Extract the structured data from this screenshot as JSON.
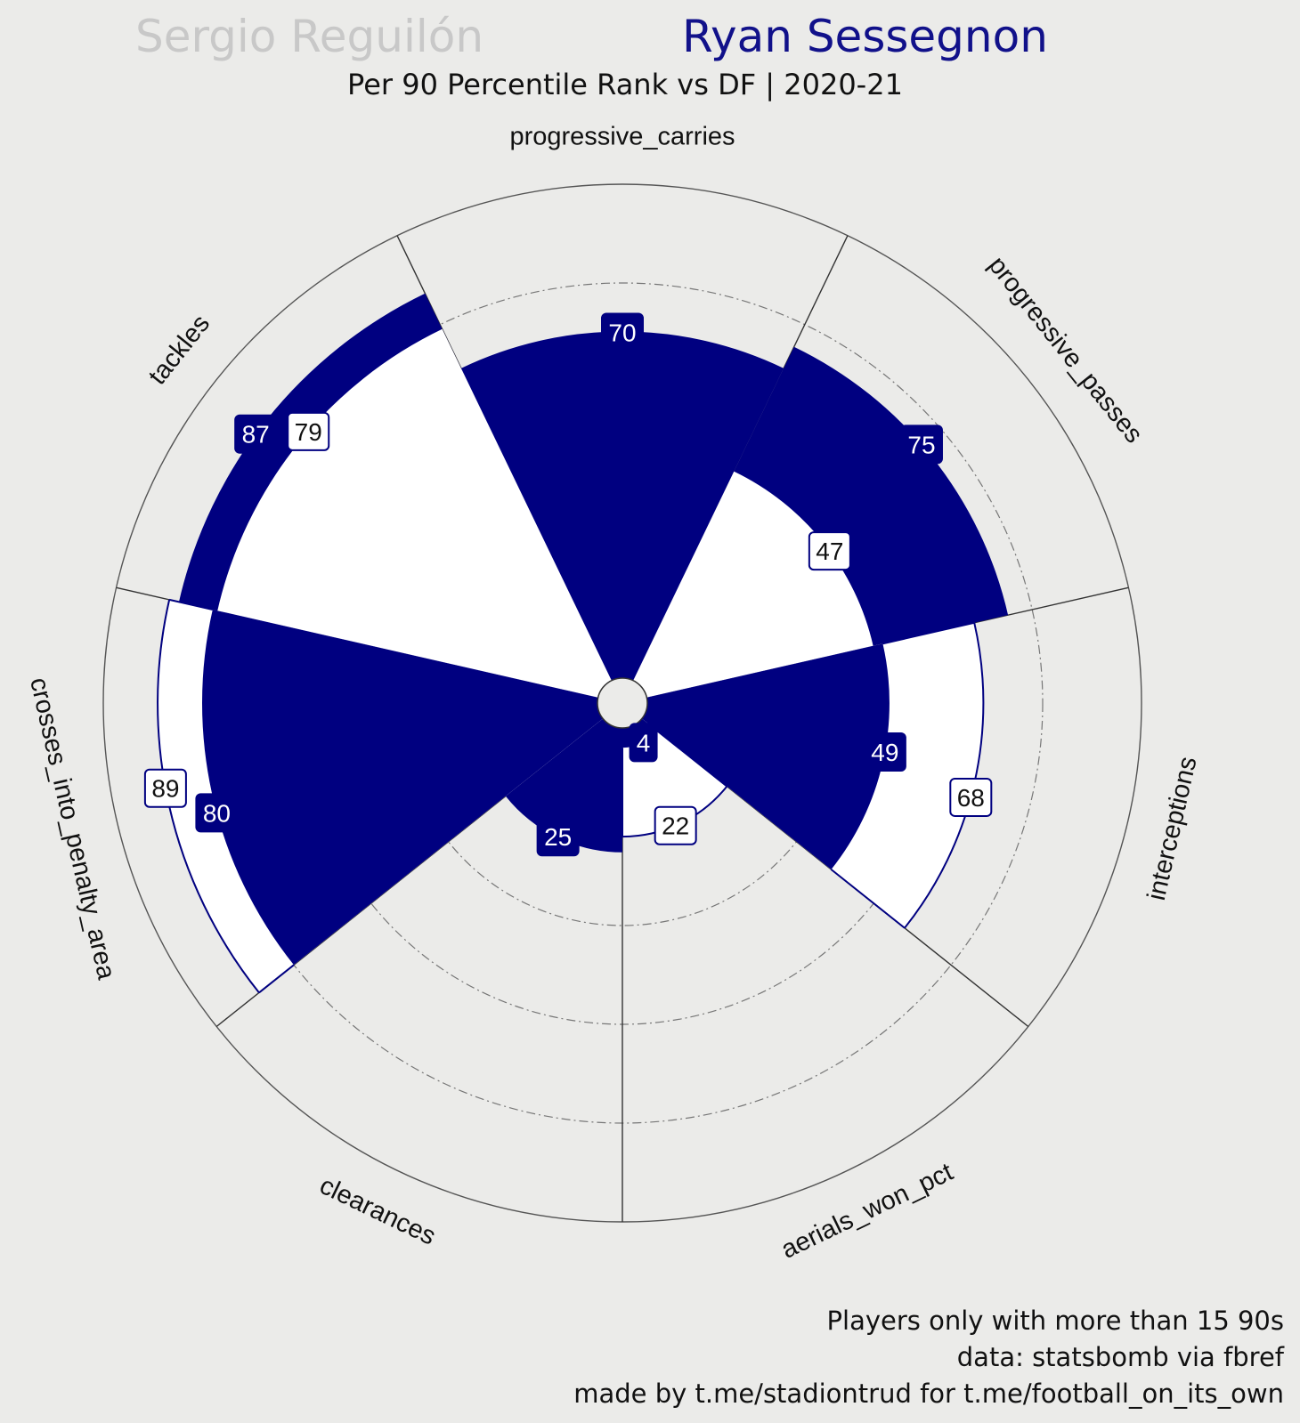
{
  "header": {
    "player_a": "Sergio Reguilón",
    "player_b": "Ryan Sessegnon",
    "subtitle": "Per 90 Percentile Rank vs DF | 2020-21"
  },
  "footer": {
    "line1": "Players only with more than 15 90s",
    "line2": "data: statsbomb via fbref",
    "line3": "made by t.me/stadiontrud for t.me/football_on_its_own"
  },
  "colors": {
    "background": "#ebebe9",
    "player_a": "#ffffff",
    "player_b": "#000080",
    "player_a_title": "#c8c8c8",
    "player_b_title": "#11118a",
    "spoke": "#333333",
    "grid": "#777777"
  },
  "chart_data": {
    "type": "polar-bar",
    "title": "Per 90 Percentile Rank vs DF | 2020-21",
    "rlim": [
      0,
      100
    ],
    "categories": [
      "progressive_carries",
      "progressive_passes",
      "interceptions",
      "aerials_won_pct",
      "clearances",
      "crosses_into_penalty_area",
      "tackles"
    ],
    "series": [
      {
        "name": "Sergio Reguilón",
        "values": [
          70,
          47,
          68,
          22,
          25,
          89,
          79
        ]
      },
      {
        "name": "Ryan Sessegnon",
        "values": [
          70,
          75,
          49,
          4,
          25,
          80,
          87
        ]
      }
    ]
  }
}
